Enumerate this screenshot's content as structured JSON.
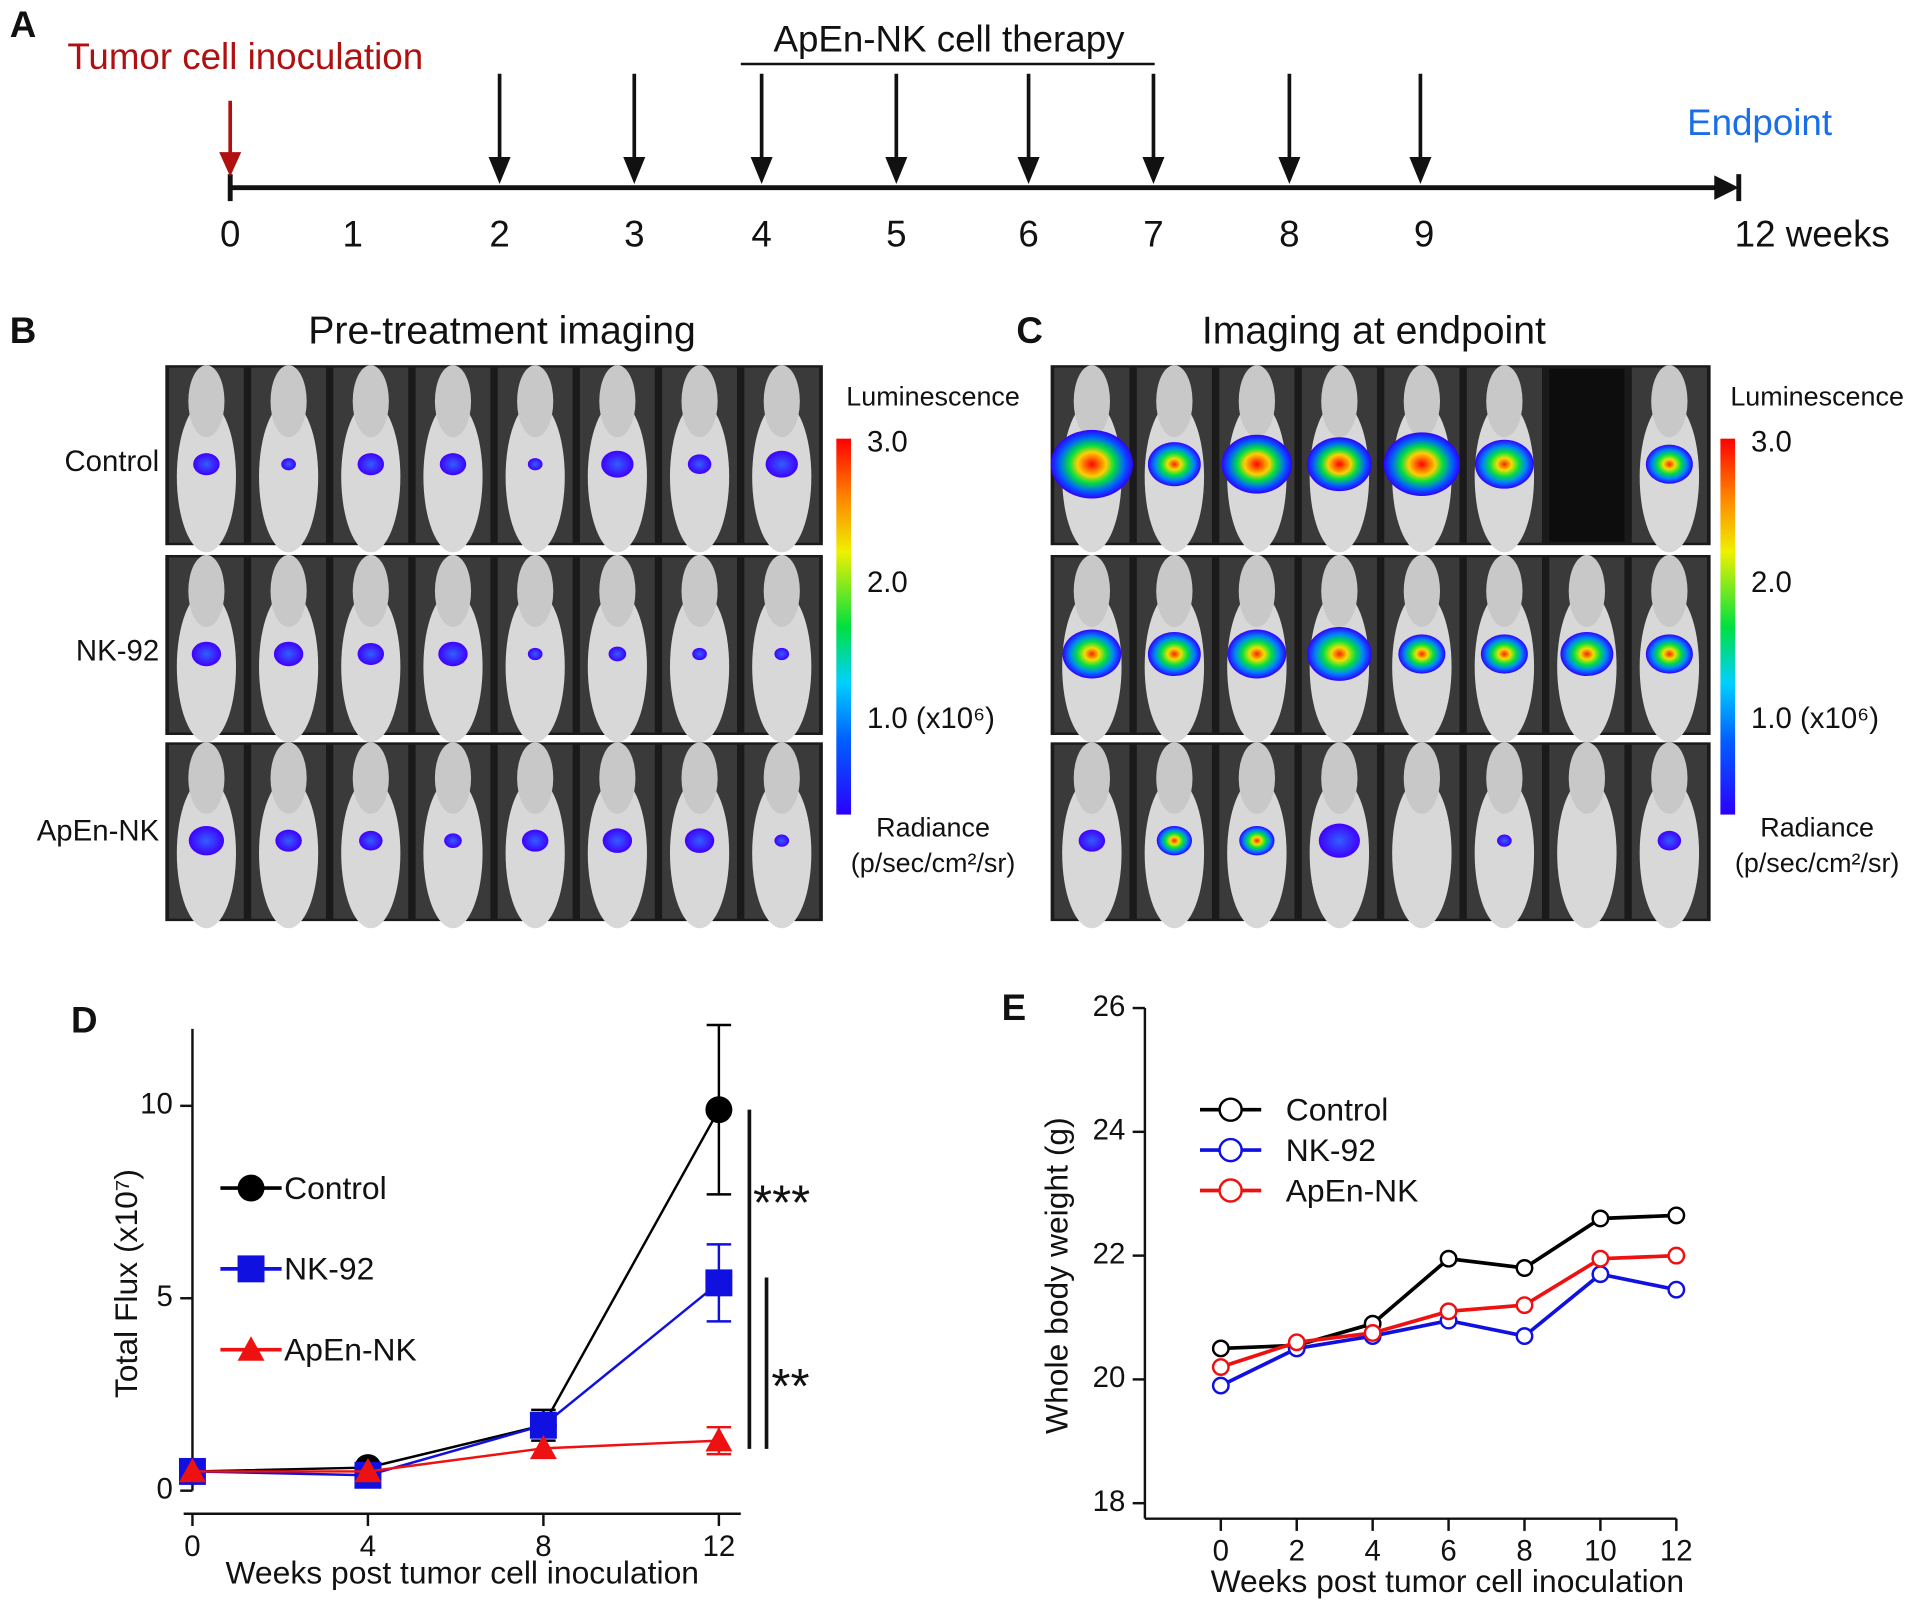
{
  "panel_labels": [
    "A",
    "B",
    "C",
    "D",
    "E"
  ],
  "timeline": {
    "start_label": "Tumor cell inoculation",
    "therapy_label": "ApEn-NK cell therapy",
    "end_label": "Endpoint",
    "week_labels": [
      "0",
      "1",
      "2",
      "3",
      "4",
      "5",
      "6",
      "7",
      "8",
      "9",
      "12 weeks"
    ]
  },
  "imaging": {
    "pre_title": "Pre-treatment imaging",
    "end_title": "Imaging at endpoint",
    "rows": [
      "Control",
      "NK-92",
      "ApEn-NK"
    ]
  },
  "colorbar": {
    "title": "Luminescence",
    "ticks": [
      "3.0",
      "2.0",
      "1.0 (x10⁶)"
    ],
    "unit": "Radiance",
    "unit_detail": "(p/sec/cm²/sr)"
  },
  "chart_data": [
    {
      "type": "line",
      "x_label": "Weeks post tumor cell inoculation",
      "y_label": "Total Flux (x10⁷)",
      "x": [
        0,
        4,
        8,
        12
      ],
      "xlim": [
        -0.2,
        12.5
      ],
      "xticks": [
        0,
        4,
        8,
        12
      ],
      "ylim": [
        -0.6,
        12
      ],
      "yticks": [
        0,
        5,
        10
      ],
      "legend": "upper-left",
      "series": [
        {
          "name": "Control",
          "color": "#000000",
          "marker": "circle",
          "values": [
            0.5,
            0.6,
            1.7,
            9.9
          ],
          "errors": [
            null,
            null,
            0.4,
            2.2
          ]
        },
        {
          "name": "NK-92",
          "color": "#1010e0",
          "marker": "square",
          "values": [
            0.5,
            0.4,
            1.7,
            5.4
          ],
          "errors": [
            null,
            null,
            null,
            1.0
          ]
        },
        {
          "name": "ApEn-NK",
          "color": "#ee1111",
          "marker": "triangle",
          "values": [
            0.5,
            0.5,
            1.1,
            1.3
          ],
          "errors": [
            null,
            null,
            null,
            0.35
          ]
        }
      ],
      "annotations": [
        "***",
        "**"
      ]
    },
    {
      "type": "line",
      "x_label": "Weeks post tumor cell inoculation",
      "y_label": "Whole body weight (g)",
      "x": [
        0,
        2,
        4,
        6,
        8,
        10,
        12
      ],
      "xlim": [
        -2,
        12
      ],
      "xticks": [
        0,
        2,
        4,
        6,
        8,
        10,
        12
      ],
      "ylim": [
        17.75,
        26
      ],
      "yticks": [
        18,
        20,
        22,
        24,
        26
      ],
      "legend": "upper-left",
      "series": [
        {
          "name": "Control",
          "color": "#000000",
          "marker": "open-circle",
          "values": [
            20.5,
            20.55,
            20.9,
            21.95,
            21.8,
            22.6,
            22.65
          ]
        },
        {
          "name": "NK-92",
          "color": "#1010e0",
          "marker": "open-circle",
          "values": [
            19.9,
            20.5,
            20.7,
            20.95,
            20.7,
            21.7,
            21.45
          ]
        },
        {
          "name": "ApEn-NK",
          "color": "#ee1111",
          "marker": "open-circle",
          "values": [
            20.2,
            20.6,
            20.75,
            21.1,
            21.2,
            21.95,
            22.0
          ]
        }
      ]
    }
  ]
}
